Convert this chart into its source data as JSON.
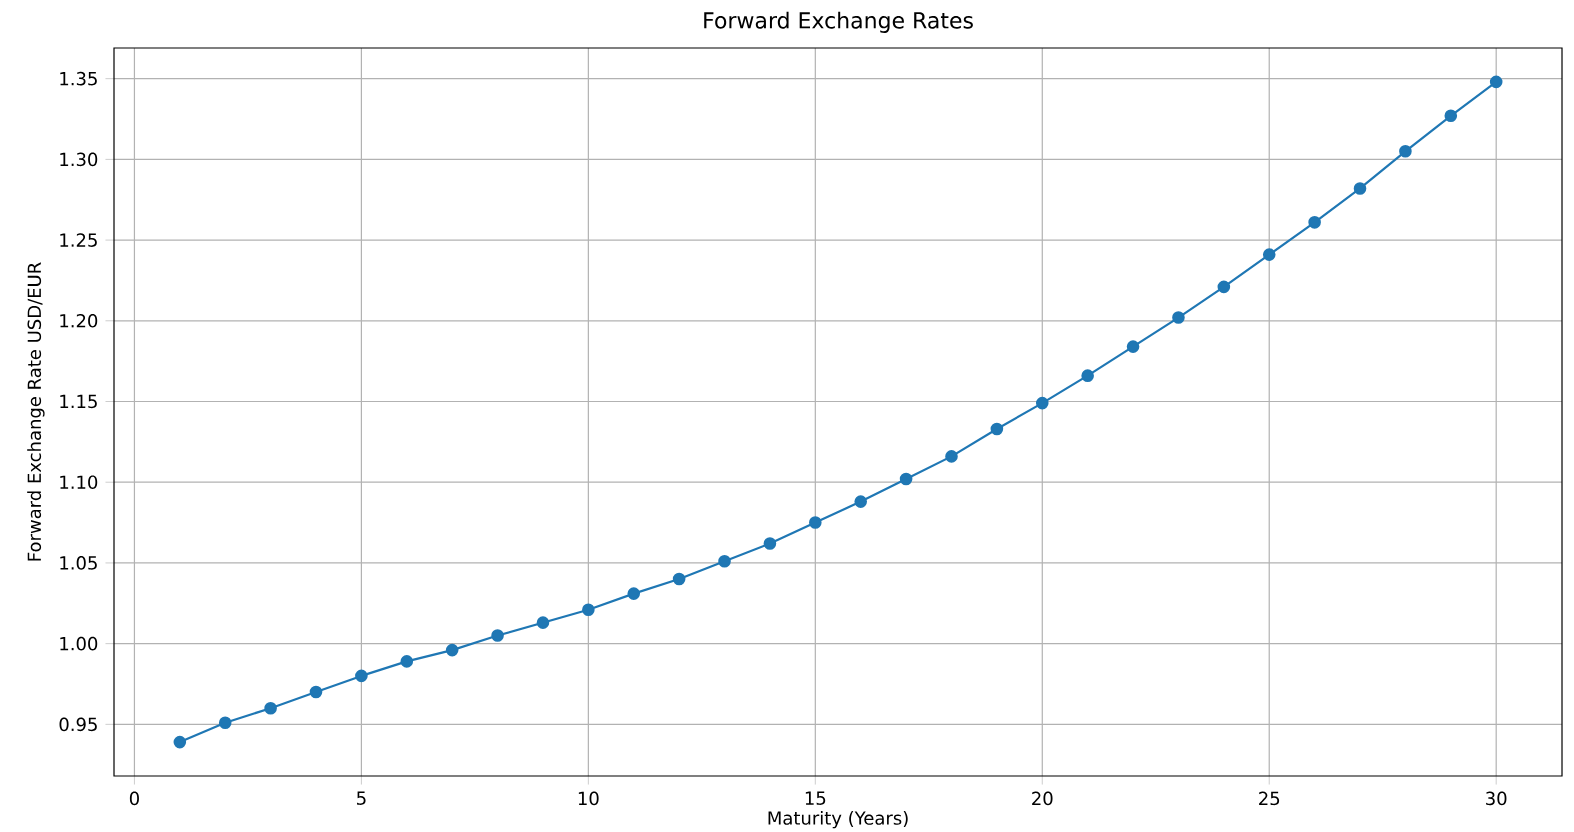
{
  "chart_data": {
    "type": "line",
    "title": "Forward Exchange Rates",
    "xlabel": "Maturity (Years)",
    "ylabel": "Forward Exchange Rate USD/EUR",
    "x": [
      1,
      2,
      3,
      4,
      5,
      6,
      7,
      8,
      9,
      10,
      11,
      12,
      13,
      14,
      15,
      16,
      17,
      18,
      19,
      20,
      21,
      22,
      23,
      24,
      25,
      26,
      27,
      28,
      29,
      30
    ],
    "series": [
      {
        "color": "#1f77b4",
        "values": [
          0.939,
          0.951,
          0.96,
          0.97,
          0.98,
          0.989,
          0.996,
          1.005,
          1.013,
          1.021,
          1.031,
          1.04,
          1.051,
          1.062,
          1.075,
          1.088,
          1.102,
          1.116,
          1.133,
          1.149,
          1.166,
          1.184,
          1.202,
          1.221,
          1.241,
          1.261,
          1.282,
          1.305,
          1.327,
          1.348
        ]
      }
    ],
    "xlim": [
      -0.45,
      31.45
    ],
    "ylim": [
      0.918,
      1.369
    ],
    "xticks": [
      0,
      5,
      10,
      15,
      20,
      25,
      30
    ],
    "yticks": [
      {
        "value": 0.95,
        "label": "0.95"
      },
      {
        "value": 1.0,
        "label": "1.00"
      },
      {
        "value": 1.05,
        "label": "1.05"
      },
      {
        "value": 1.1,
        "label": "1.10"
      },
      {
        "value": 1.15,
        "label": "1.15"
      },
      {
        "value": 1.2,
        "label": "1.20"
      },
      {
        "value": 1.25,
        "label": "1.25"
      },
      {
        "value": 1.3,
        "label": "1.30"
      },
      {
        "value": 1.35,
        "label": "1.35"
      }
    ],
    "grid": true,
    "marker": "circle",
    "line_style": "solid"
  }
}
